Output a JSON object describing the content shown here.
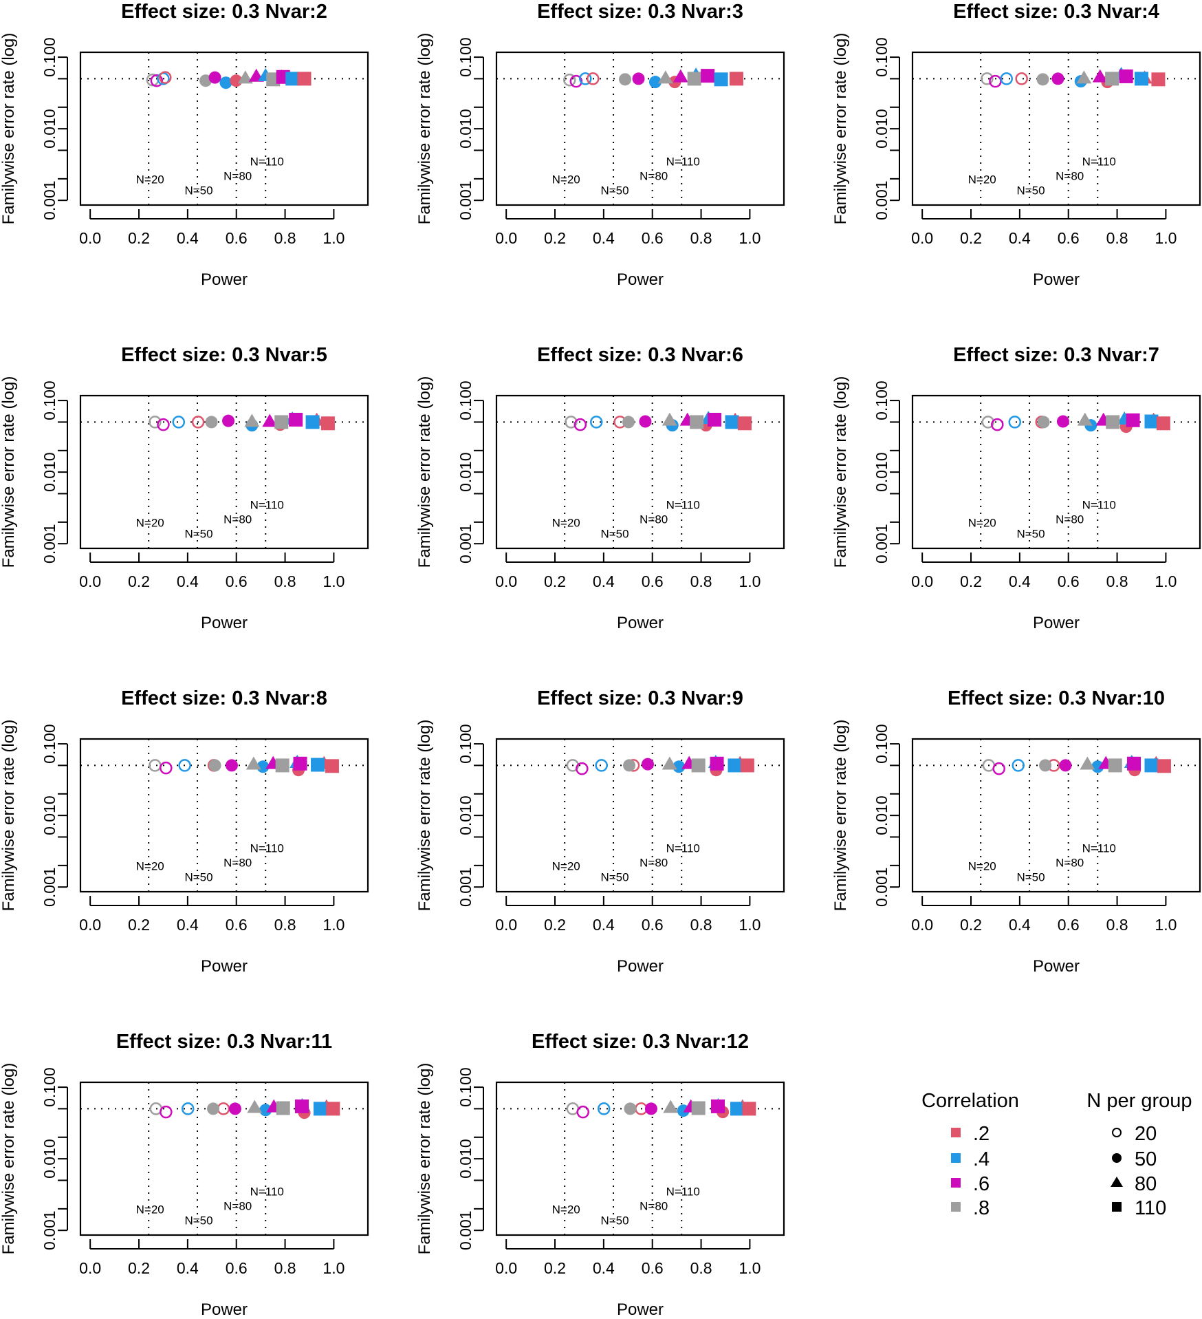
{
  "legend": {
    "correlation_title": "Correlation",
    "correlations": [
      ".2",
      ".4",
      ".6",
      ".8"
    ],
    "n_title": "N per group",
    "n_values": [
      "20",
      "50",
      "80",
      "110"
    ],
    "n_shapes": [
      "open-circle",
      "filled-circle",
      "filled-triangle",
      "filled-square"
    ]
  },
  "colors": {
    "corr_.2": "#DF536B",
    "corr_.4": "#2297E6",
    "corr_.6": "#CD0BBC",
    "corr_.8": "#9E9E9E"
  },
  "chart_data": {
    "type": "scatter",
    "xlabel": "Power",
    "ylabel": "Familywise error rate (log)",
    "xlim": [
      -0.04,
      1.14
    ],
    "ylim": [
      0.00086,
      0.117
    ],
    "y_scale": "log",
    "x_ticks": [
      "0.0",
      "0.2",
      "0.4",
      "0.6",
      "0.8",
      "1.0"
    ],
    "y_ticks_labeled": [
      "0.001",
      "0.010",
      "0.100"
    ],
    "y_ticks": [
      0.001,
      0.002,
      0.005,
      0.01,
      0.02,
      0.05,
      0.1
    ],
    "reference_fwer": 0.05,
    "reference_power": [
      0.24,
      0.44,
      0.6,
      0.72
    ],
    "annotations": [
      {
        "text": "N=20",
        "x": 0.24,
        "y": 0.00197
      },
      {
        "text": "N=50",
        "x": 0.44,
        "y": 0.00138
      },
      {
        "text": "N=80",
        "x": 0.6,
        "y": 0.0022
      },
      {
        "text": "N=110",
        "x": 0.72,
        "y": 0.0035
      }
    ],
    "series_order_note": "power/fwer arrays indexed [correlation .2,.4,.6,.8][N 20,50,80,110]",
    "panels": [
      {
        "title": "Effect size: 0.3  Nvar:2",
        "power": [
          [
            0.308,
            0.599,
            0.785,
            0.879
          ],
          [
            0.3,
            0.557,
            0.72,
            0.83
          ],
          [
            0.273,
            0.512,
            0.682,
            0.792
          ],
          [
            0.256,
            0.474,
            0.637,
            0.751
          ]
        ],
        "fwer": [
          [
            0.052,
            0.047,
            0.052,
            0.05
          ],
          [
            0.05,
            0.044,
            0.054,
            0.05
          ],
          [
            0.047,
            0.052,
            0.053,
            0.053
          ],
          [
            0.048,
            0.047,
            0.05,
            0.049
          ]
        ]
      },
      {
        "title": "Effect size: 0.3  Nvar:3",
        "power": [
          [
            0.356,
            0.692,
            0.83,
            0.945
          ],
          [
            0.325,
            0.612,
            0.779,
            0.882
          ],
          [
            0.287,
            0.543,
            0.716,
            0.827
          ],
          [
            0.26,
            0.488,
            0.654,
            0.772
          ]
        ],
        "fwer": [
          [
            0.05,
            0.045,
            0.052,
            0.05
          ],
          [
            0.05,
            0.045,
            0.055,
            0.049
          ],
          [
            0.046,
            0.05,
            0.052,
            0.055
          ],
          [
            0.048,
            0.049,
            0.05,
            0.05
          ]
        ]
      },
      {
        "title": "Effect size: 0.3  Nvar:4",
        "power": [
          [
            0.408,
            0.76,
            0.913,
            0.969
          ],
          [
            0.346,
            0.651,
            0.817,
            0.9
          ],
          [
            0.3,
            0.557,
            0.73,
            0.837
          ],
          [
            0.266,
            0.495,
            0.664,
            0.779
          ]
        ],
        "fwer": [
          [
            0.05,
            0.045,
            0.05,
            0.049
          ],
          [
            0.05,
            0.046,
            0.056,
            0.05
          ],
          [
            0.046,
            0.05,
            0.052,
            0.054
          ],
          [
            0.05,
            0.049,
            0.05,
            0.05
          ]
        ]
      },
      {
        "title": "Effect size: 0.3  Nvar:5",
        "power": [
          [
            0.443,
            0.78,
            0.93,
            0.976
          ],
          [
            0.363,
            0.664,
            0.83,
            0.913
          ],
          [
            0.3,
            0.567,
            0.737,
            0.844
          ],
          [
            0.266,
            0.498,
            0.664,
            0.785
          ]
        ],
        "fwer": [
          [
            0.05,
            0.046,
            0.052,
            0.048
          ],
          [
            0.05,
            0.045,
            0.054,
            0.05
          ],
          [
            0.046,
            0.052,
            0.05,
            0.054
          ],
          [
            0.05,
            0.05,
            0.05,
            0.05
          ]
        ]
      },
      {
        "title": "Effect size: 0.3  Nvar:6",
        "power": [
          [
            0.467,
            0.82,
            0.94,
            0.979
          ],
          [
            0.37,
            0.682,
            0.83,
            0.927
          ],
          [
            0.304,
            0.571,
            0.744,
            0.855
          ],
          [
            0.266,
            0.502,
            0.671,
            0.782
          ]
        ],
        "fwer": [
          [
            0.05,
            0.045,
            0.052,
            0.048
          ],
          [
            0.05,
            0.045,
            0.055,
            0.05
          ],
          [
            0.046,
            0.051,
            0.052,
            0.054
          ],
          [
            0.05,
            0.05,
            0.052,
            0.05
          ]
        ]
      },
      {
        "title": "Effect size: 0.3  Nvar:7",
        "power": [
          [
            0.49,
            0.837,
            0.95,
            0.99
          ],
          [
            0.38,
            0.692,
            0.83,
            0.941
          ],
          [
            0.308,
            0.578,
            0.744,
            0.865
          ],
          [
            0.27,
            0.498,
            0.668,
            0.782
          ]
        ],
        "fwer": [
          [
            0.05,
            0.043,
            0.052,
            0.048
          ],
          [
            0.05,
            0.045,
            0.054,
            0.051
          ],
          [
            0.046,
            0.051,
            0.052,
            0.053
          ],
          [
            0.05,
            0.05,
            0.052,
            0.05
          ]
        ]
      },
      {
        "title": "Effect size: 0.3  Nvar:8",
        "power": [
          [
            0.508,
            0.855,
            0.96,
            0.993
          ],
          [
            0.388,
            0.709,
            0.85,
            0.934
          ],
          [
            0.311,
            0.581,
            0.751,
            0.862
          ],
          [
            0.266,
            0.512,
            0.671,
            0.789
          ]
        ],
        "fwer": [
          [
            0.05,
            0.043,
            0.052,
            0.049
          ],
          [
            0.05,
            0.048,
            0.054,
            0.051
          ],
          [
            0.046,
            0.05,
            0.052,
            0.053
          ],
          [
            0.05,
            0.05,
            0.051,
            0.05
          ]
        ]
      },
      {
        "title": "Effect size: 0.3  Nvar:9",
        "power": [
          [
            0.522,
            0.862,
            0.96,
            0.99
          ],
          [
            0.391,
            0.709,
            0.86,
            0.938
          ],
          [
            0.311,
            0.581,
            0.751,
            0.865
          ],
          [
            0.273,
            0.505,
            0.671,
            0.789
          ]
        ],
        "fwer": [
          [
            0.05,
            0.043,
            0.052,
            0.05
          ],
          [
            0.05,
            0.048,
            0.054,
            0.05
          ],
          [
            0.045,
            0.052,
            0.052,
            0.053
          ],
          [
            0.05,
            0.05,
            0.051,
            0.05
          ]
        ]
      },
      {
        "title": "Effect size: 0.3  Nvar:10",
        "power": [
          [
            0.54,
            0.872,
            0.96,
            0.993
          ],
          [
            0.394,
            0.72,
            0.86,
            0.941
          ],
          [
            0.315,
            0.588,
            0.754,
            0.869
          ],
          [
            0.273,
            0.505,
            0.678,
            0.792
          ]
        ],
        "fwer": [
          [
            0.05,
            0.043,
            0.052,
            0.049
          ],
          [
            0.05,
            0.048,
            0.054,
            0.05
          ],
          [
            0.045,
            0.05,
            0.052,
            0.053
          ],
          [
            0.05,
            0.05,
            0.051,
            0.05
          ]
        ]
      },
      {
        "title": "Effect size: 0.3  Nvar:11",
        "power": [
          [
            0.547,
            0.879,
            0.97,
            0.997
          ],
          [
            0.401,
            0.72,
            0.87,
            0.945
          ],
          [
            0.311,
            0.595,
            0.754,
            0.869
          ],
          [
            0.27,
            0.505,
            0.675,
            0.792
          ]
        ],
        "fwer": [
          [
            0.05,
            0.044,
            0.052,
            0.05
          ],
          [
            0.05,
            0.048,
            0.054,
            0.05
          ],
          [
            0.045,
            0.05,
            0.052,
            0.054
          ],
          [
            0.05,
            0.05,
            0.051,
            0.051
          ]
        ]
      },
      {
        "title": "Effect size: 0.3  Nvar:12",
        "power": [
          [
            0.554,
            0.889,
            0.97,
            0.997
          ],
          [
            0.401,
            0.727,
            0.87,
            0.948
          ],
          [
            0.315,
            0.595,
            0.758,
            0.869
          ],
          [
            0.273,
            0.509,
            0.675,
            0.789
          ]
        ],
        "fwer": [
          [
            0.05,
            0.045,
            0.052,
            0.05
          ],
          [
            0.05,
            0.047,
            0.054,
            0.05
          ],
          [
            0.045,
            0.05,
            0.052,
            0.054
          ],
          [
            0.05,
            0.05,
            0.051,
            0.051
          ]
        ]
      }
    ]
  }
}
